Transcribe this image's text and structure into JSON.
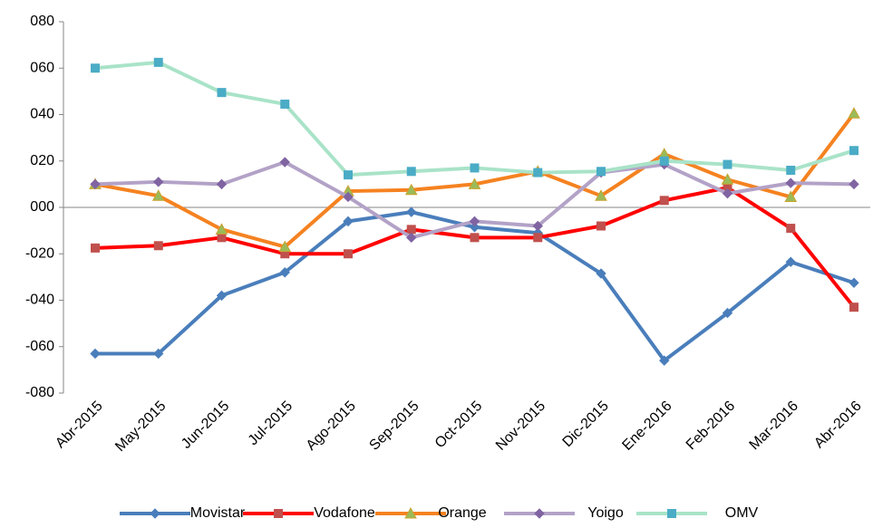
{
  "chart_data": {
    "type": "line",
    "categories": [
      "Abr-2015",
      "May-2015",
      "Jun-2015",
      "Jul-2015",
      "Ago-2015",
      "Sep-2015",
      "Oct-2015",
      "Nov-2015",
      "Dic-2015",
      "Ene-2016",
      "Feb-2016",
      "Mar-2016",
      "Abr-2016"
    ],
    "series": [
      {
        "name": "Movistar",
        "color": "#4a7ebb",
        "marker": "diamond",
        "marker_color": "#4a7ebb",
        "values": [
          -63,
          -63,
          -38,
          -28,
          -6,
          -2,
          -8.5,
          -11,
          -28.5,
          -66,
          -45.5,
          -23.5,
          -32.5
        ]
      },
      {
        "name": "Vodafone",
        "color": "#ff0000",
        "marker": "square",
        "marker_color": "#c0504d",
        "values": [
          -17.5,
          -16.5,
          -13,
          -20,
          -20,
          -9.5,
          -13,
          -13,
          -8,
          3,
          8.5,
          -9,
          -43
        ]
      },
      {
        "name": "Orange",
        "color": "#f58220",
        "marker": "triangle",
        "marker_color": "#9bbb59",
        "values": [
          10,
          5,
          -9.5,
          -17,
          7,
          7.5,
          10,
          15.5,
          5,
          23,
          12,
          4.5,
          40.5
        ]
      },
      {
        "name": "Yoigo",
        "color": "#b3a2c7",
        "marker": "diamond",
        "marker_color": "#8064a2",
        "values": [
          10,
          11,
          10,
          19.5,
          4.5,
          -13,
          -6,
          -8,
          15,
          18.5,
          6,
          10.5,
          10
        ]
      },
      {
        "name": "OMV",
        "color": "#a9e3c8",
        "marker": "square",
        "marker_color": "#4bacc6",
        "values": [
          60,
          62.5,
          49.5,
          44.5,
          14,
          15.5,
          17,
          15,
          15.5,
          20,
          18.5,
          16,
          24.5
        ]
      }
    ],
    "ylim": [
      -80,
      80
    ],
    "yticks": [
      {
        "value": -80,
        "label": "-080"
      },
      {
        "value": -60,
        "label": "-060"
      },
      {
        "value": -40,
        "label": "-040"
      },
      {
        "value": -20,
        "label": "-020"
      },
      {
        "value": 0,
        "label": "000"
      },
      {
        "value": 20,
        "label": "020"
      },
      {
        "value": 40,
        "label": "040"
      },
      {
        "value": 60,
        "label": "060"
      },
      {
        "value": 80,
        "label": "080"
      }
    ],
    "legend": "bottom"
  }
}
